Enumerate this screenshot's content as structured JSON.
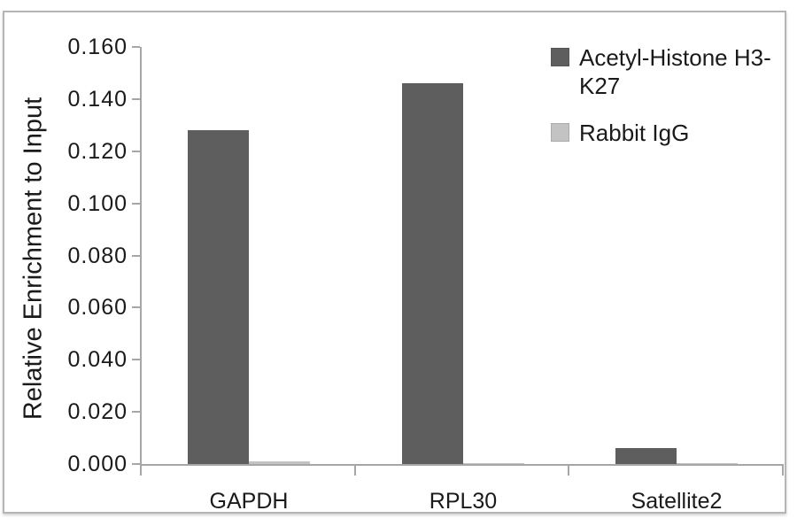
{
  "chart_data": {
    "type": "bar",
    "title": "",
    "xlabel": "",
    "ylabel": "Relative Enrichment to Input",
    "categories": [
      "GAPDH",
      "RPL30",
      "Satellite2"
    ],
    "series": [
      {
        "name": "Acetyl-Histone H3-K27",
        "color": "#5e5e5e",
        "border": "#555555",
        "values": [
          0.128,
          0.146,
          0.006
        ]
      },
      {
        "name": "Rabbit IgG",
        "color": "#c3c3c3",
        "border": "#ababab",
        "values": [
          0.001,
          0.0003,
          0.0003
        ]
      }
    ],
    "ylim": [
      0,
      0.16
    ],
    "ytick_step": 0.02,
    "ytick_labels": [
      "0.160",
      "0.140",
      "0.120",
      "0.100",
      "0.080",
      "0.060",
      "0.040",
      "0.020",
      "0.000"
    ],
    "grid": false,
    "legend_position": "top-right",
    "axis_color": "#a6a6a6",
    "text_color": "#1a1a1a",
    "frame_border_color": "#b5b5b5",
    "background_color": "#ffffff"
  }
}
